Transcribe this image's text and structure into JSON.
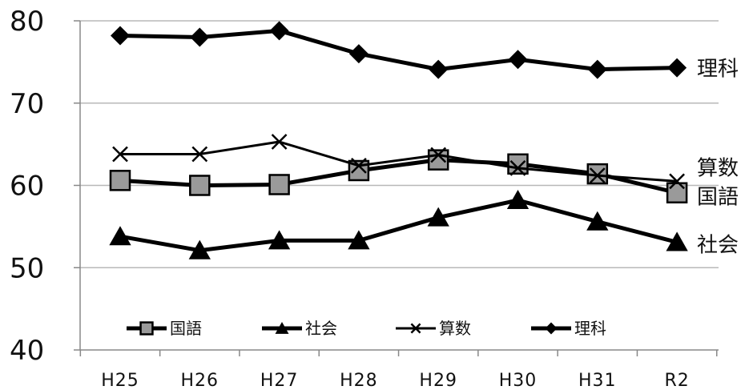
{
  "chart_data": {
    "type": "line",
    "categories": [
      "H25",
      "H26",
      "H27",
      "H28",
      "H29",
      "H30",
      "H31",
      "R2"
    ],
    "ylim": [
      40,
      80
    ],
    "yticks": [
      40,
      50,
      60,
      70,
      80
    ],
    "grid": true,
    "legend_position": "bottom",
    "series": [
      {
        "name": "国語",
        "marker": "square",
        "end_label": "国語",
        "values": [
          60.6,
          60.0,
          60.1,
          61.8,
          63.1,
          62.6,
          61.4,
          59.1
        ]
      },
      {
        "name": "社会",
        "marker": "triangle",
        "end_label": "社会",
        "values": [
          53.8,
          52.1,
          53.3,
          53.3,
          56.1,
          58.2,
          55.6,
          53.1
        ]
      },
      {
        "name": "算数",
        "marker": "x",
        "end_label": "算数",
        "values": [
          63.8,
          63.8,
          65.3,
          62.4,
          63.7,
          62.1,
          61.2,
          60.5
        ]
      },
      {
        "name": "理科",
        "marker": "diamond",
        "end_label": "理科",
        "values": [
          78.2,
          78.0,
          78.8,
          76.0,
          74.1,
          75.3,
          74.1,
          74.3
        ]
      }
    ],
    "colors": {
      "line": "#000000",
      "square_fill": "#9a9a9a",
      "grid": "#b8b8b8"
    }
  }
}
